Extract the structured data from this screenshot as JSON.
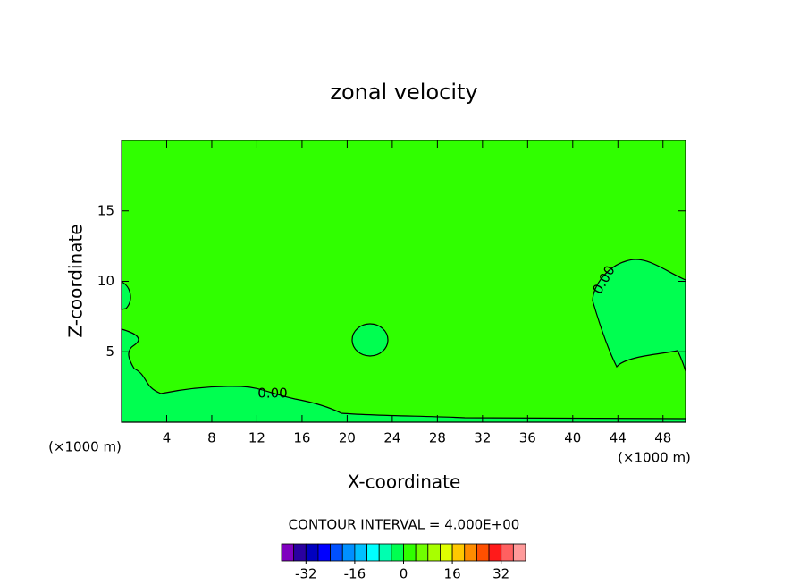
{
  "chart_data": {
    "type": "contour",
    "title": "zonal velocity",
    "x_label": "X-coordinate",
    "y_label": "Z-coordinate",
    "x_unit": "(×1000 m)",
    "y_unit": "(×1000 m)",
    "xlim": [
      0,
      50
    ],
    "ylim": [
      0,
      20
    ],
    "xticks": [
      4,
      8,
      12,
      16,
      20,
      24,
      28,
      32,
      36,
      40,
      44,
      48
    ],
    "yticks": [
      5,
      10,
      15
    ],
    "contour_labels": [
      "0.00",
      "0.00"
    ],
    "contour_interval": "CONTOUR INTERVAL = 4.000E+00",
    "colorbar": {
      "lim": [
        -40,
        40
      ],
      "ticks": [
        -32,
        -16,
        0,
        16,
        32
      ],
      "colors": [
        "#7f00bf",
        "#2a00a0",
        "#0000c0",
        "#0000ff",
        "#0050ff",
        "#0090ff",
        "#00c0ff",
        "#00ffff",
        "#00ffb0",
        "#00ff50",
        "#30ff00",
        "#70ff00",
        "#a8ff00",
        "#e0ff00",
        "#ffc800",
        "#ff8c00",
        "#ff5000",
        "#ff1a1a",
        "#ff6060",
        "#ff9a9a"
      ]
    }
  }
}
